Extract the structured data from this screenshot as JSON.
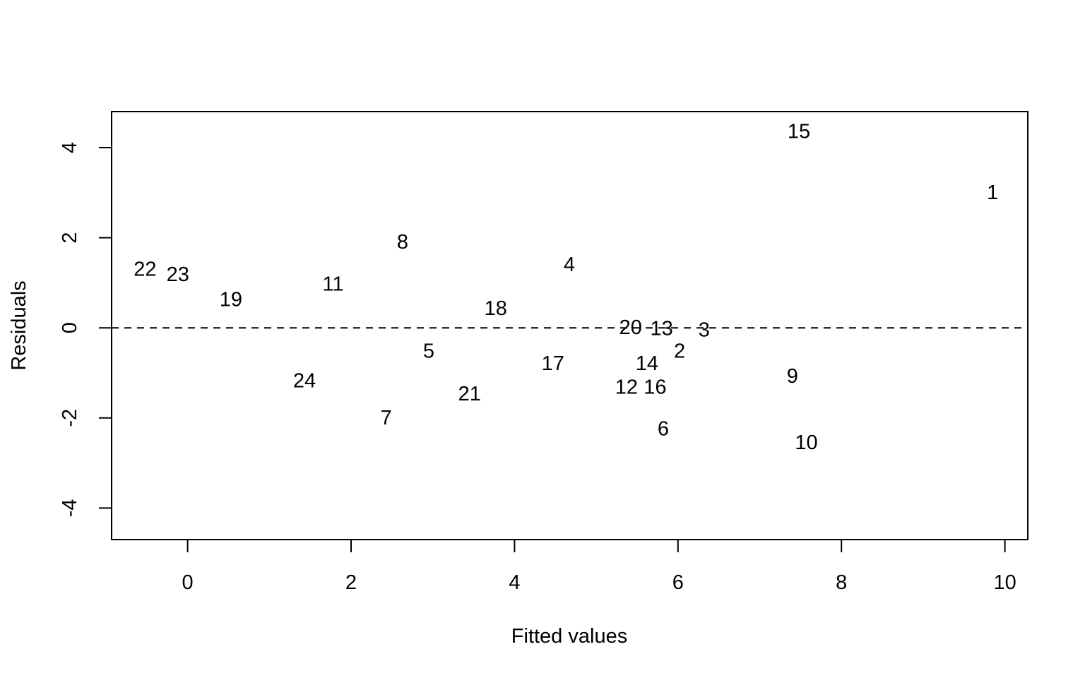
{
  "chart_data": {
    "type": "scatter",
    "title": "",
    "xlabel": "Fitted values",
    "ylabel": "Residuals",
    "xlim": [
      -0.93,
      10.28
    ],
    "ylim": [
      -4.7,
      4.8
    ],
    "x_ticks": [
      "0",
      "2",
      "4",
      "6",
      "8",
      "10"
    ],
    "y_ticks": [
      "-4",
      "-2",
      "0",
      "2",
      "4"
    ],
    "reference_line": {
      "y": 0,
      "style": "dashed"
    },
    "points": [
      {
        "label": "1",
        "x": 9.85,
        "y": 3.0
      },
      {
        "label": "2",
        "x": 6.02,
        "y": -0.52
      },
      {
        "label": "3",
        "x": 6.32,
        "y": -0.05
      },
      {
        "label": "4",
        "x": 4.67,
        "y": 1.4
      },
      {
        "label": "5",
        "x": 2.95,
        "y": -0.52
      },
      {
        "label": "6",
        "x": 5.82,
        "y": -2.25
      },
      {
        "label": "7",
        "x": 2.43,
        "y": -2.0
      },
      {
        "label": "8",
        "x": 2.63,
        "y": 1.9
      },
      {
        "label": "9",
        "x": 7.4,
        "y": -1.08
      },
      {
        "label": "10",
        "x": 7.57,
        "y": -2.55
      },
      {
        "label": "11",
        "x": 1.78,
        "y": 0.97
      },
      {
        "label": "12",
        "x": 5.37,
        "y": -1.32
      },
      {
        "label": "13",
        "x": 5.8,
        "y": -0.02
      },
      {
        "label": "14",
        "x": 5.62,
        "y": -0.8
      },
      {
        "label": "15",
        "x": 7.48,
        "y": 4.35
      },
      {
        "label": "16",
        "x": 5.72,
        "y": -1.32
      },
      {
        "label": "17",
        "x": 4.47,
        "y": -0.8
      },
      {
        "label": "18",
        "x": 3.77,
        "y": 0.43
      },
      {
        "label": "19",
        "x": 0.53,
        "y": 0.62
      },
      {
        "label": "20",
        "x": 5.42,
        "y": 0.0
      },
      {
        "label": "21",
        "x": 3.45,
        "y": -1.47
      },
      {
        "label": "22",
        "x": -0.52,
        "y": 1.3
      },
      {
        "label": "23",
        "x": -0.12,
        "y": 1.18
      },
      {
        "label": "24",
        "x": 1.43,
        "y": -1.18
      }
    ]
  }
}
